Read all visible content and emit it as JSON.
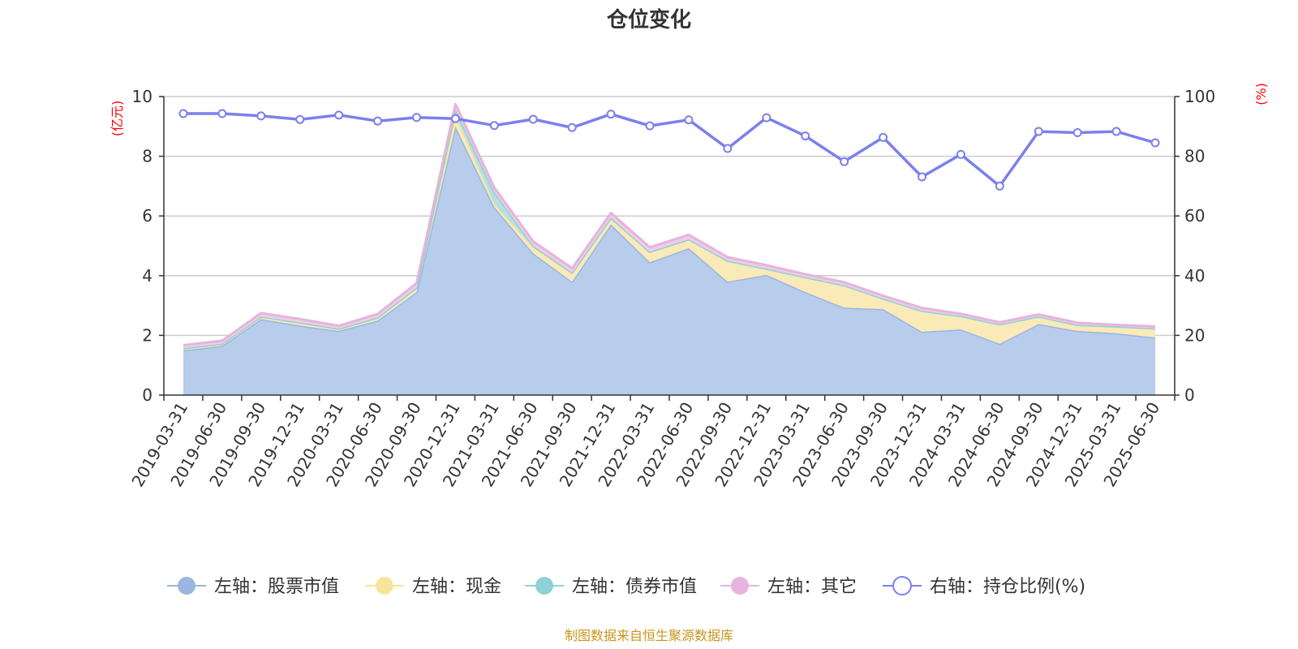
{
  "chart_data": {
    "type": "area",
    "title": "仓位变化",
    "left_axis": {
      "unit": "(亿元)",
      "min": 0,
      "max": 10,
      "ticks": [
        0,
        2,
        4,
        6,
        8,
        10
      ]
    },
    "right_axis": {
      "unit": "(%)",
      "min": 0,
      "max": 100,
      "ticks": [
        0,
        20,
        40,
        60,
        80,
        100
      ]
    },
    "categories": [
      "2019-03-31",
      "2019-06-30",
      "2019-09-30",
      "2019-12-31",
      "2020-03-31",
      "2020-06-30",
      "2020-09-30",
      "2020-12-31",
      "2021-03-31",
      "2021-06-30",
      "2021-09-30",
      "2021-12-31",
      "2022-03-31",
      "2022-06-30",
      "2022-09-30",
      "2022-12-31",
      "2023-03-31",
      "2023-06-30",
      "2023-09-30",
      "2023-12-31",
      "2024-03-31",
      "2024-06-30",
      "2024-09-30",
      "2024-12-31",
      "2025-03-31",
      "2025-06-30"
    ],
    "grid": true,
    "legend_position": "bottom",
    "series": [
      {
        "name": "左轴：股票市值",
        "axis": "left",
        "kind": "stacked-area",
        "color": "#9bb6e0",
        "fill": "#b8cceb",
        "values": [
          1.5,
          1.65,
          2.55,
          2.33,
          2.15,
          2.5,
          3.45,
          9.0,
          6.3,
          4.75,
          3.8,
          5.72,
          4.45,
          4.92,
          3.8,
          4.03,
          3.45,
          2.93,
          2.88,
          2.12,
          2.2,
          1.72,
          2.38,
          2.15,
          2.07,
          1.93
        ]
      },
      {
        "name": "左轴：现金",
        "axis": "left",
        "kind": "stacked-area",
        "color": "#f7e59b",
        "fill": "#faeab8",
        "values": [
          0.07,
          0.07,
          0.08,
          0.1,
          0.07,
          0.1,
          0.15,
          0.4,
          0.1,
          0.2,
          0.3,
          0.22,
          0.35,
          0.3,
          0.7,
          0.2,
          0.5,
          0.75,
          0.35,
          0.7,
          0.45,
          0.65,
          0.25,
          0.2,
          0.23,
          0.3
        ]
      },
      {
        "name": "左轴：债券市值",
        "axis": "left",
        "kind": "stacked-area",
        "color": "#8fd1d4",
        "fill": "#b5e0e2",
        "values": [
          0,
          0,
          0,
          0,
          0,
          0,
          0,
          0.17,
          0.4,
          0.05,
          0,
          0,
          0,
          0,
          0,
          0,
          0,
          0,
          0,
          0,
          0,
          0,
          0,
          0,
          0,
          0
        ]
      },
      {
        "name": "左轴：其它",
        "axis": "left",
        "kind": "stacked-area",
        "color": "#e6b4dc",
        "fill": "#efcde8",
        "values": [
          0.1,
          0.1,
          0.12,
          0.12,
          0.1,
          0.12,
          0.15,
          0.18,
          0.15,
          0.15,
          0.15,
          0.16,
          0.15,
          0.15,
          0.12,
          0.12,
          0.1,
          0.1,
          0.1,
          0.1,
          0.07,
          0.07,
          0.07,
          0.07,
          0.05,
          0.07
        ]
      },
      {
        "name": "右轴：持仓比例(%)",
        "axis": "right",
        "kind": "line",
        "color": "#7b80ee",
        "values": [
          94.3,
          94.3,
          93.5,
          92.3,
          93.8,
          91.8,
          93.0,
          92.6,
          90.3,
          92.4,
          89.6,
          94.1,
          90.2,
          92.2,
          82.6,
          92.9,
          86.8,
          78.2,
          86.3,
          73.1,
          80.6,
          70.0,
          88.3,
          87.9,
          88.3,
          84.5
        ]
      }
    ],
    "source": "制图数据来自恒生聚源数据库"
  }
}
